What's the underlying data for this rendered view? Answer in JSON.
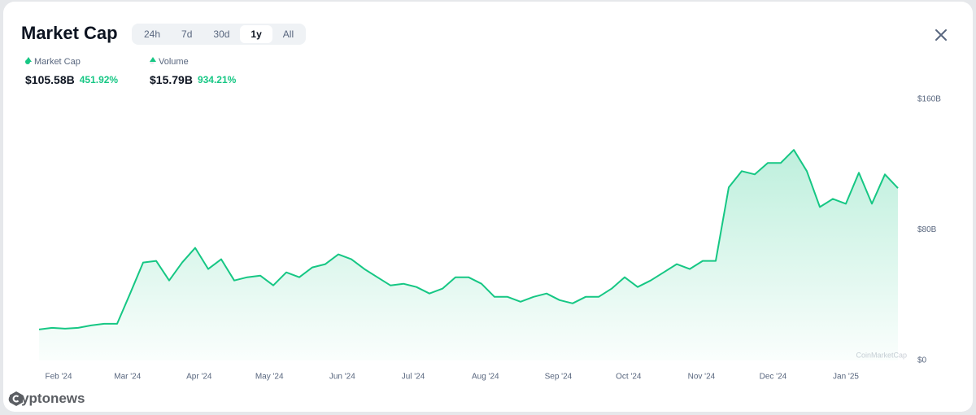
{
  "header": {
    "title": "Market Cap",
    "tabs": [
      "24h",
      "7d",
      "30d",
      "1y",
      "All"
    ],
    "selected_tab": "1y"
  },
  "stats": [
    {
      "name": "Market Cap",
      "value": "$105.58B",
      "change": "451.92%"
    },
    {
      "name": "Volume",
      "value": "$15.79B",
      "change": "934.21%"
    }
  ],
  "chart_data": {
    "type": "area",
    "series": [
      {
        "name": "Market Cap",
        "color": "#16c784",
        "values": [
          19,
          20,
          19.5,
          20,
          21.5,
          22.5,
          22.5,
          41,
          60,
          61,
          49,
          60,
          69,
          56,
          62,
          49,
          51,
          52,
          46,
          54,
          51,
          57,
          59,
          65,
          62,
          56,
          51,
          46,
          47,
          45,
          41,
          44,
          51,
          51,
          47,
          39,
          39,
          36,
          39,
          41,
          37,
          35,
          39,
          39,
          44,
          51,
          45,
          49,
          54,
          59,
          56,
          61,
          61,
          106,
          116,
          114,
          121,
          121,
          129,
          116,
          94,
          99,
          96,
          115,
          96,
          114,
          105.58
        ]
      }
    ],
    "xlim": [
      0,
      66
    ],
    "xticks": [
      {
        "value": 1.5,
        "label": "Feb '24"
      },
      {
        "value": 6.8,
        "label": "Mar '24"
      },
      {
        "value": 12.3,
        "label": "Apr '24"
      },
      {
        "value": 17.7,
        "label": "May '24"
      },
      {
        "value": 23.3,
        "label": "Jun '24"
      },
      {
        "value": 28.75,
        "label": "Jul '24"
      },
      {
        "value": 34.3,
        "label": "Aug '24"
      },
      {
        "value": 39.9,
        "label": "Sep '24"
      },
      {
        "value": 45.3,
        "label": "Oct '24"
      },
      {
        "value": 50.9,
        "label": "Nov '24"
      },
      {
        "value": 56.4,
        "label": "Dec '24"
      },
      {
        "value": 62,
        "label": "Jan '25"
      }
    ],
    "ylim": [
      0,
      160
    ],
    "yticks": [
      {
        "value": 0,
        "label": "$0"
      },
      {
        "value": 80,
        "label": "$80B"
      },
      {
        "value": 160,
        "label": "$160B"
      }
    ],
    "grid": false
  },
  "watermark": "CoinMarketCap",
  "brand": "cryptonews"
}
